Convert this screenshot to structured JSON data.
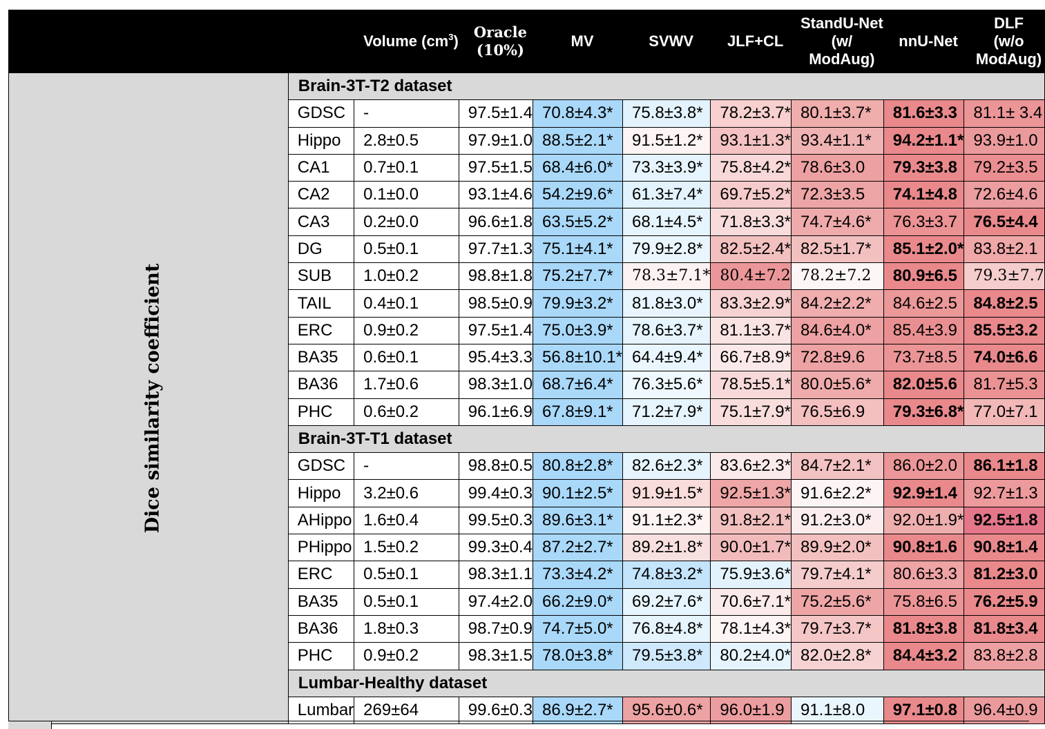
{
  "metric_label": "Dice similarity coefficient",
  "headers": {
    "volume": "Volume (cm",
    "volume_sup": "3",
    "volume_close": ")",
    "oracle": [
      "Oracle",
      "(10%)"
    ],
    "mv": "MV",
    "svwv": "SVWV",
    "jlfcl": "JLF+CL",
    "standunet": [
      "StandU-Net",
      "(w/",
      "ModAug)"
    ],
    "nnunet": "nnU-Net",
    "dlf": [
      "DLF",
      "(w/o",
      "ModAug)"
    ]
  },
  "sections": [
    {
      "title": "Brain-3T-T2 dataset",
      "rows": [
        {
          "name": "GDSC",
          "cells": [
            {
              "t": "-"
            },
            {
              "t": "97.5±1.4"
            },
            {
              "t": "70.8±4.3*",
              "c": "#a9d8f9"
            },
            {
              "t": "75.8±3.8*",
              "c": "#e3f3fd"
            },
            {
              "t": "78.2±3.7*",
              "c": "#f7d0cf"
            },
            {
              "t": "80.1±3.7*",
              "c": "#efadac"
            },
            {
              "t": "81.6±3.3",
              "c": "#e9898c",
              "b": true
            },
            {
              "t": "81.1± 3.4",
              "c": "#eb9597"
            }
          ]
        },
        {
          "name": "Hippo",
          "cells": [
            {
              "t": "2.8±0.5"
            },
            {
              "t": "97.9±1.0"
            },
            {
              "t": "88.5±2.1*",
              "c": "#a9d8f9"
            },
            {
              "t": "91.5±1.2*",
              "c": "#fdf4f4"
            },
            {
              "t": "93.1±1.3*",
              "c": "#f4c2c2"
            },
            {
              "t": "93.4±1.1*",
              "c": "#f0b3b3"
            },
            {
              "t": "94.2±1.1*",
              "c": "#e9898c",
              "b": true
            },
            {
              "t": "93.9±1.0",
              "c": "#eb9a9c"
            }
          ]
        },
        {
          "name": "CA1",
          "cells": [
            {
              "t": "0.7±0.1"
            },
            {
              "t": "97.5±1.5"
            },
            {
              "t": "68.4±6.0*",
              "c": "#a9d8f9"
            },
            {
              "t": "73.3±3.9*",
              "c": "#e6f4fd"
            },
            {
              "t": "75.8±4.2*",
              "c": "#f8d8d8"
            },
            {
              "t": "78.6±3.0",
              "c": "#eda0a1"
            },
            {
              "t": "79.3±3.8",
              "c": "#e9898c",
              "b": true
            },
            {
              "t": "79.2±3.5",
              "c": "#ea8e91"
            }
          ]
        },
        {
          "name": "CA2",
          "cells": [
            {
              "t": "0.1±0.0"
            },
            {
              "t": "93.1±4.6"
            },
            {
              "t": "54.2±9.6*",
              "c": "#a9d8f9"
            },
            {
              "t": "61.3±7.4*",
              "c": "#e3f3fd"
            },
            {
              "t": "69.7±5.2*",
              "c": "#f5cbcb"
            },
            {
              "t": "72.3±3.5",
              "c": "#eda4a5"
            },
            {
              "t": "74.1±4.8",
              "c": "#e9898c",
              "b": true
            },
            {
              "t": "72.6±4.6",
              "c": "#ec9d9f"
            }
          ]
        },
        {
          "name": "CA3",
          "cells": [
            {
              "t": "0.2±0.0"
            },
            {
              "t": "96.6±1.8"
            },
            {
              "t": "63.5±5.2*",
              "c": "#a9d8f9"
            },
            {
              "t": "68.1±4.5*",
              "c": "#e6f4fd"
            },
            {
              "t": "71.8±3.3*",
              "c": "#f8dcdc"
            },
            {
              "t": "74.7±4.6*",
              "c": "#efabab"
            },
            {
              "t": "76.3±3.7",
              "c": "#eb9294"
            },
            {
              "t": "76.5±4.4",
              "c": "#e9898c",
              "b": true
            }
          ]
        },
        {
          "name": "DG",
          "cells": [
            {
              "t": "0.5±0.1"
            },
            {
              "t": "97.7±1.3"
            },
            {
              "t": "75.1±4.1*",
              "c": "#a9d8f9"
            },
            {
              "t": "79.9±2.8*",
              "c": "#eaf6fe"
            },
            {
              "t": "82.5±2.4*",
              "c": "#f3c0c0"
            },
            {
              "t": "82.5±1.7*",
              "c": "#f3c0c0"
            },
            {
              "t": "85.1±2.0*",
              "c": "#e9898c",
              "b": true
            },
            {
              "t": "83.8±2.1",
              "c": "#efa7a8"
            }
          ]
        },
        {
          "name": "SUB",
          "cells": [
            {
              "t": "1.0±0.2"
            },
            {
              "t": "98.8±1.8"
            },
            {
              "t": "75.2±7.7*",
              "c": "#a9d8f9"
            },
            {
              "t": "78.3±7.1*",
              "c": "#fdf2f2",
              "s": true
            },
            {
              "t": "80.4±7.2",
              "c": "#eb9799",
              "s": true
            },
            {
              "t": "78.2±7.2",
              "c": "#fdf6f6",
              "s": true
            },
            {
              "t": "80.9±6.5",
              "c": "#e9898c",
              "b": true
            },
            {
              "t": "79.3±7.7",
              "c": "#f5cdcd",
              "s": true
            }
          ]
        },
        {
          "name": "TAIL",
          "cells": [
            {
              "t": "0.4±0.1"
            },
            {
              "t": "98.5±0.9"
            },
            {
              "t": "79.9±3.2*",
              "c": "#a9d8f9"
            },
            {
              "t": "81.8±3.0*",
              "c": "#e8f5fe"
            },
            {
              "t": "83.3±2.9*",
              "c": "#f6d2d2"
            },
            {
              "t": "84.2±2.2*",
              "c": "#efadad"
            },
            {
              "t": "84.6±2.5",
              "c": "#eb9898"
            },
            {
              "t": "84.8±2.5",
              "c": "#e9898c",
              "b": true
            }
          ]
        },
        {
          "name": "ERC",
          "cells": [
            {
              "t": "0.9±0.2"
            },
            {
              "t": "97.5±1.4"
            },
            {
              "t": "75.0±3.9*",
              "c": "#a9d8f9"
            },
            {
              "t": "78.6±3.7*",
              "c": "#e6f4fd"
            },
            {
              "t": "81.1±3.7*",
              "c": "#fae3e3"
            },
            {
              "t": "84.6±4.0*",
              "c": "#eda1a2"
            },
            {
              "t": "85.4±3.9",
              "c": "#ea8f91"
            },
            {
              "t": "85.5±3.2",
              "c": "#e9898c",
              "b": true
            }
          ]
        },
        {
          "name": "BA35",
          "cells": [
            {
              "t": "0.6±0.1"
            },
            {
              "t": "95.4±3.3"
            },
            {
              "t": "56.8±10.1*",
              "c": "#a9d8f9"
            },
            {
              "t": "64.4±9.4*",
              "c": "#eaf6fe"
            },
            {
              "t": "66.7±8.9*",
              "c": "#fbe9e9"
            },
            {
              "t": "72.8±9.6",
              "c": "#eda2a3"
            },
            {
              "t": "73.7±8.5",
              "c": "#eb9496"
            },
            {
              "t": "74.0±6.6",
              "c": "#e9898c",
              "b": true
            }
          ]
        },
        {
          "name": "BA36",
          "cells": [
            {
              "t": "1.7±0.6"
            },
            {
              "t": "98.3±1.0"
            },
            {
              "t": "68.7±6.4*",
              "c": "#a9d8f9"
            },
            {
              "t": "76.3±5.6*",
              "c": "#eff8fe"
            },
            {
              "t": "78.5±5.1*",
              "c": "#f8d9d9"
            },
            {
              "t": "80.0±5.6*",
              "c": "#efabab"
            },
            {
              "t": "82.0±5.6",
              "c": "#e9898c",
              "b": true
            },
            {
              "t": "81.7±5.3",
              "c": "#eb9294"
            }
          ]
        },
        {
          "name": "PHC",
          "cells": [
            {
              "t": "0.6±0.2"
            },
            {
              "t": "96.1±6.9"
            },
            {
              "t": "67.8±9.1*",
              "c": "#a9d8f9"
            },
            {
              "t": "71.2±7.9*",
              "c": "#e6f4fd"
            },
            {
              "t": "75.1±7.9*",
              "c": "#f9dddd"
            },
            {
              "t": "76.5±6.9",
              "c": "#f3bfbf"
            },
            {
              "t": "79.3±6.8*",
              "c": "#e9898c",
              "b": true
            },
            {
              "t": "77.0±7.1",
              "c": "#f2b8b8"
            }
          ]
        }
      ]
    },
    {
      "title": "Brain-3T-T1 dataset",
      "rows": [
        {
          "name": "GDSC",
          "cells": [
            {
              "t": "-"
            },
            {
              "t": "98.8±0.5"
            },
            {
              "t": "80.8±2.8*",
              "c": "#a9d8f9"
            },
            {
              "t": "82.6±2.3*",
              "c": "#e6f4fd"
            },
            {
              "t": "83.6±2.3*",
              "c": "#fbeaea"
            },
            {
              "t": "84.7±2.1*",
              "c": "#f3c2c2"
            },
            {
              "t": "86.0±2.0",
              "c": "#eb9698"
            },
            {
              "t": "86.1±1.8",
              "c": "#e9898c",
              "b": true
            }
          ]
        },
        {
          "name": "Hippo",
          "cells": [
            {
              "t": "3.2±0.6"
            },
            {
              "t": "99.4±0.3"
            },
            {
              "t": "90.1±2.5*",
              "c": "#a9d8f9"
            },
            {
              "t": "91.9±1.5*",
              "c": "#f9dcdc"
            },
            {
              "t": "92.5±1.3*",
              "c": "#eea6a7"
            },
            {
              "t": "91.6±2.2*",
              "c": "#fdf5f5"
            },
            {
              "t": "92.9±1.4",
              "c": "#e9898c",
              "b": true
            },
            {
              "t": "92.7±1.3",
              "c": "#ec9a9c"
            }
          ]
        },
        {
          "name": "AHippo",
          "cells": [
            {
              "t": "1.6±0.4"
            },
            {
              "t": "99.5±0.3"
            },
            {
              "t": "89.6±3.1*",
              "c": "#a9d8f9"
            },
            {
              "t": "91.1±2.3*",
              "c": "#fdf4f4"
            },
            {
              "t": "91.8±2.1*",
              "c": "#f3c0c0"
            },
            {
              "t": "91.2±3.0*",
              "c": "#fbeded"
            },
            {
              "t": "92.0±1.9*",
              "c": "#eeaeae"
            },
            {
              "t": "92.5±1.8",
              "c": "#e4768a",
              "b": true
            }
          ]
        },
        {
          "name": "PHippo",
          "cells": [
            {
              "t": "1.5±0.2"
            },
            {
              "t": "99.3±0.4"
            },
            {
              "t": "87.2±2.7*",
              "c": "#a9d8f9"
            },
            {
              "t": "89.2±1.8*",
              "c": "#f9e0e0"
            },
            {
              "t": "90.0±1.7*",
              "c": "#f2bbbb"
            },
            {
              "t": "89.9±2.0*",
              "c": "#f3c0c0"
            },
            {
              "t": "90.8±1.6",
              "c": "#e9898c",
              "b": true
            },
            {
              "t": "90.8±1.4",
              "c": "#e9898c",
              "b": true
            }
          ]
        },
        {
          "name": "ERC",
          "cells": [
            {
              "t": "0.5±0.1"
            },
            {
              "t": "98.3±1.1"
            },
            {
              "t": "73.3±4.2*",
              "c": "#a9d8f9"
            },
            {
              "t": "74.8±3.2*",
              "c": "#c4e4fb"
            },
            {
              "t": "75.9±3.6*",
              "c": "#e3f3fd"
            },
            {
              "t": "79.7±4.1*",
              "c": "#f5cccc"
            },
            {
              "t": "80.6±3.3",
              "c": "#eea3a4"
            },
            {
              "t": "81.2±3.0",
              "c": "#e9898c",
              "b": true
            }
          ]
        },
        {
          "name": "BA35",
          "cells": [
            {
              "t": "0.5±0.1"
            },
            {
              "t": "97.4±2.0"
            },
            {
              "t": "66.2±9.0*",
              "c": "#a9d8f9"
            },
            {
              "t": "69.2±7.6*",
              "c": "#e6f4fd"
            },
            {
              "t": "70.6±7.1*",
              "c": "#fbeaea"
            },
            {
              "t": "75.2±5.6*",
              "c": "#eea5a6"
            },
            {
              "t": "75.8±6.5",
              "c": "#eb9496"
            },
            {
              "t": "76.2±5.9",
              "c": "#e9898c",
              "b": true
            }
          ]
        },
        {
          "name": "BA36",
          "cells": [
            {
              "t": "1.8±0.3"
            },
            {
              "t": "98.7±0.9"
            },
            {
              "t": "74.7±5.0*",
              "c": "#a9d8f9"
            },
            {
              "t": "76.8±4.8*",
              "c": "#e6f4fd"
            },
            {
              "t": "78.1±4.3*",
              "c": "#fdf4f4"
            },
            {
              "t": "79.7±3.7*",
              "c": "#f4c6c6"
            },
            {
              "t": "81.8±3.8",
              "c": "#e9898c",
              "b": true
            },
            {
              "t": "81.8±3.4",
              "c": "#e9898c",
              "b": true
            }
          ]
        },
        {
          "name": "PHC",
          "cells": [
            {
              "t": "0.9±0.2"
            },
            {
              "t": "98.3±1.5"
            },
            {
              "t": "78.0±3.8*",
              "c": "#a9d8f9"
            },
            {
              "t": "79.5±3.8*",
              "c": "#cfe9fc"
            },
            {
              "t": "80.2±4.0*",
              "c": "#e6f4fd"
            },
            {
              "t": "82.0±2.8*",
              "c": "#f6d2d2"
            },
            {
              "t": "84.4±3.2",
              "c": "#e9898c",
              "b": true
            },
            {
              "t": "83.8±2.8",
              "c": "#eda0a1"
            }
          ]
        }
      ]
    },
    {
      "title": "Lumbar-Healthy dataset",
      "rows": [
        {
          "name": "Lumbar",
          "cells": [
            {
              "t": "269±64"
            },
            {
              "t": "99.6±0.3"
            },
            {
              "t": "86.9±2.7*",
              "c": "#a9d8f9"
            },
            {
              "t": "95.6±0.6*",
              "c": "#eda2a3"
            },
            {
              "t": "96.0±1.9",
              "c": "#ec9d9f"
            },
            {
              "t": "91.1±8.0",
              "c": "#eaf6fe"
            },
            {
              "t": "97.1±0.8",
              "c": "#e9898c",
              "b": true
            },
            {
              "t": "96.4±0.9",
              "c": "#eb9a9c"
            }
          ]
        }
      ]
    }
  ]
}
